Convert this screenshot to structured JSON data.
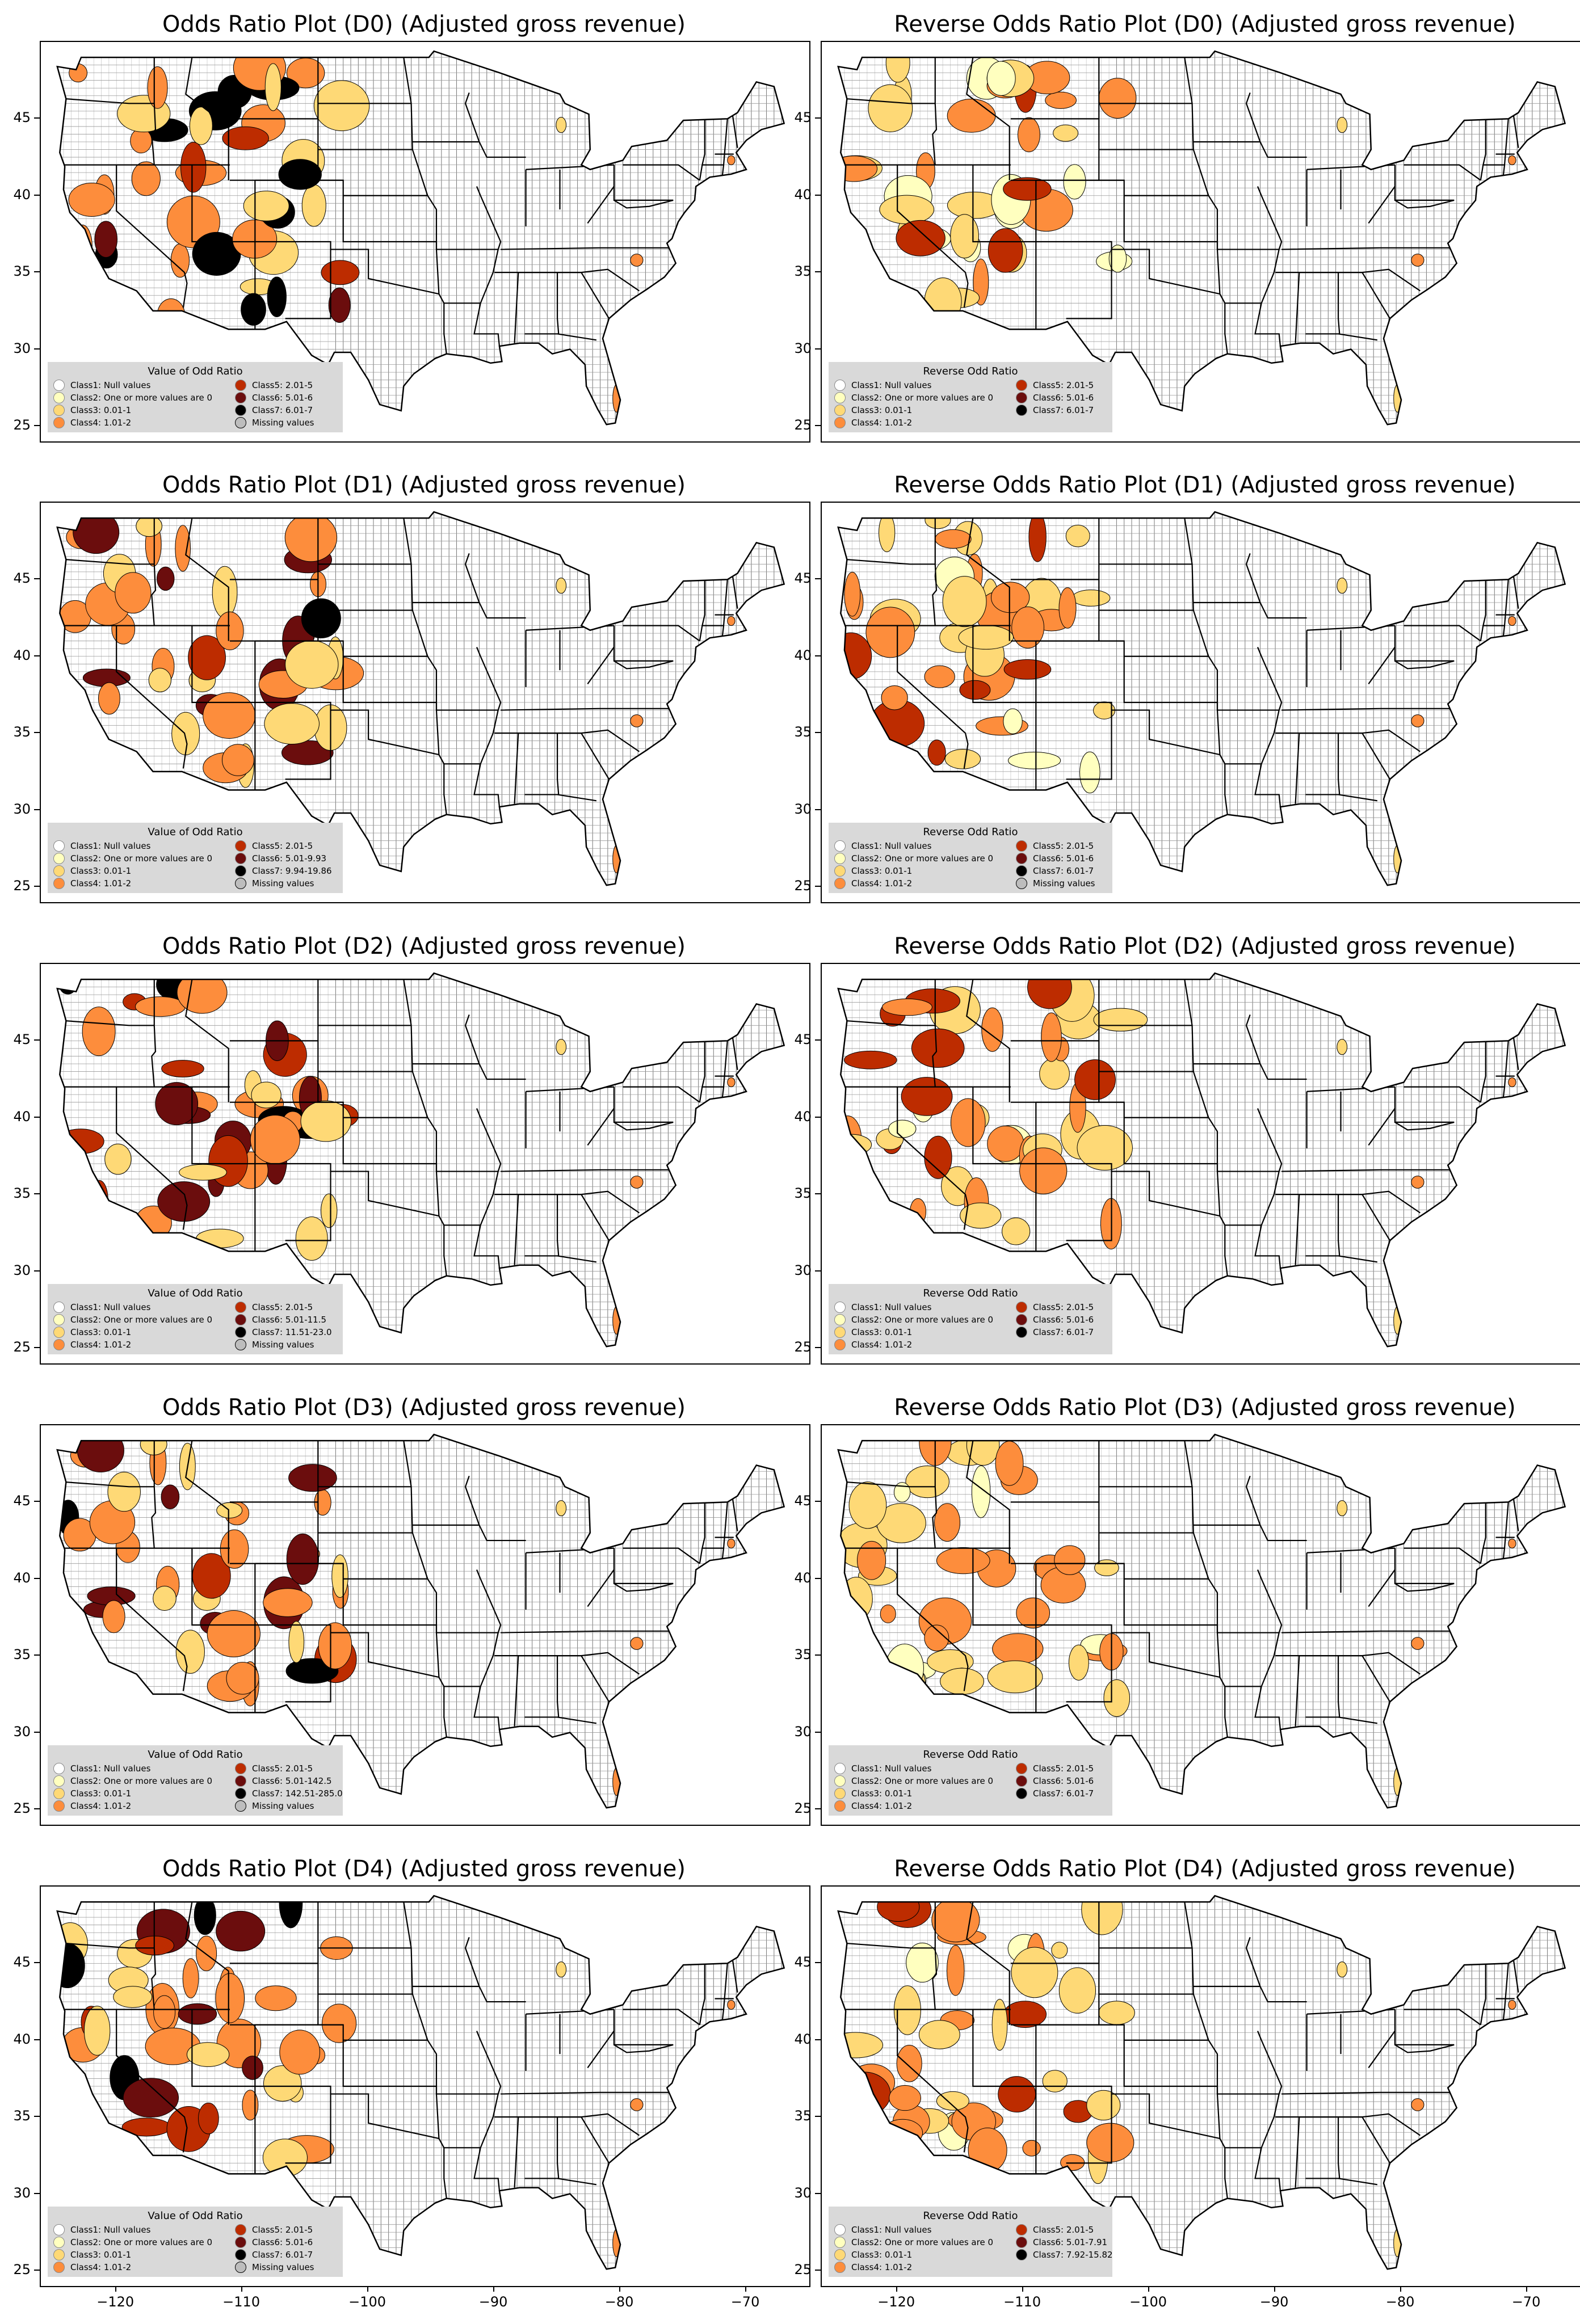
{
  "x_ticks": [
    "−120",
    "−110",
    "−100",
    "−90",
    "−80",
    "−70"
  ],
  "y_ticks": [
    "45",
    "40",
    "35",
    "30",
    "25"
  ],
  "colors": {
    "class1": "#ffffff",
    "class2": "#ffffbf",
    "class3": "#fed976",
    "class4": "#fd8d3c",
    "class5": "#bd2c00",
    "class6": "#6b0d0d",
    "class7": "#000000",
    "missing": "#bdbdbd",
    "legend_bg": "#d9d9d9"
  },
  "panels": [
    {
      "title": "Odds Ratio Plot (D0) (Adjusted gross revenue)",
      "legend_title": "Value of Odd Ratio",
      "legend": [
        "Class1: Null values",
        "Class2: One or more values are 0",
        "Class3: 0.01-1",
        "Class4: 1.01-2",
        "Class5: 2.01-5",
        "Class6: 5.01-6",
        "Class7: 6.01-7",
        "Missing values"
      ]
    },
    {
      "title": "Reverse Odds Ratio Plot (D0) (Adjusted gross revenue)",
      "legend_title": "Reverse Odd Ratio",
      "legend": [
        "Class1: Null values",
        "Class2: One or more values are 0",
        "Class3: 0.01-1",
        "Class4: 1.01-2",
        "Class5: 2.01-5",
        "Class6: 5.01-6",
        "Class7: 6.01-7"
      ]
    },
    {
      "title": "Odds Ratio Plot (D1) (Adjusted gross revenue)",
      "legend_title": "Value of Odd Ratio",
      "legend": [
        "Class1: Null values",
        "Class2: One or more values are 0",
        "Class3: 0.01-1",
        "Class4: 1.01-2",
        "Class5: 2.01-5",
        "Class6: 5.01-9.93",
        "Class7: 9.94-19.86",
        "Missing values"
      ]
    },
    {
      "title": "Reverse Odds Ratio Plot (D1) (Adjusted gross revenue)",
      "legend_title": "Reverse Odd Ratio",
      "legend": [
        "Class1: Null values",
        "Class2: One or more values are 0",
        "Class3: 0.01-1",
        "Class4: 1.01-2",
        "Class5: 2.01-5",
        "Class6: 5.01-6",
        "Class7: 6.01-7",
        "Missing values"
      ]
    },
    {
      "title": "Odds Ratio Plot (D2) (Adjusted gross revenue)",
      "legend_title": "Value of Odd Ratio",
      "legend": [
        "Class1: Null values",
        "Class2: One or more values are 0",
        "Class3: 0.01-1",
        "Class4: 1.01-2",
        "Class5: 2.01-5",
        "Class6: 5.01-11.5",
        "Class7: 11.51-23.0",
        "Missing values"
      ]
    },
    {
      "title": "Reverse Odds Ratio Plot (D2) (Adjusted gross revenue)",
      "legend_title": "Reverse Odd Ratio",
      "legend": [
        "Class1: Null values",
        "Class2: One or more values are 0",
        "Class3: 0.01-1",
        "Class4: 1.01-2",
        "Class5: 2.01-5",
        "Class6: 5.01-6",
        "Class7: 6.01-7"
      ]
    },
    {
      "title": "Odds Ratio Plot (D3) (Adjusted gross revenue)",
      "legend_title": "Value of Odd Ratio",
      "legend": [
        "Class1: Null values",
        "Class2: One or more values are 0",
        "Class3: 0.01-1",
        "Class4: 1.01-2",
        "Class5: 2.01-5",
        "Class6: 5.01-142.5",
        "Class7: 142.51-285.0",
        "Missing values"
      ]
    },
    {
      "title": "Reverse Odds Ratio Plot (D3) (Adjusted gross revenue)",
      "legend_title": "Reverse Odd Ratio",
      "legend": [
        "Class1: Null values",
        "Class2: One or more values are 0",
        "Class3: 0.01-1",
        "Class4: 1.01-2",
        "Class5: 2.01-5",
        "Class6: 5.01-6",
        "Class7: 6.01-7"
      ]
    },
    {
      "title": "Odds Ratio Plot (D4) (Adjusted gross revenue)",
      "legend_title": "Value of Odd Ratio",
      "legend": [
        "Class1: Null values",
        "Class2: One or more values are 0",
        "Class3: 0.01-1",
        "Class4: 1.01-2",
        "Class5: 2.01-5",
        "Class6: 5.01-6",
        "Class7: 6.01-7",
        "Missing values"
      ]
    },
    {
      "title": "Reverse Odds Ratio Plot (D4) (Adjusted gross revenue)",
      "legend_title": "Reverse Odd Ratio",
      "legend": [
        "Class1: Null values",
        "Class2: One or more values are 0",
        "Class3: 0.01-1",
        "Class4: 1.01-2",
        "Class5: 2.01-5",
        "Class6: 5.01-7.91",
        "Class7: 7.92-15.82"
      ]
    }
  ]
}
